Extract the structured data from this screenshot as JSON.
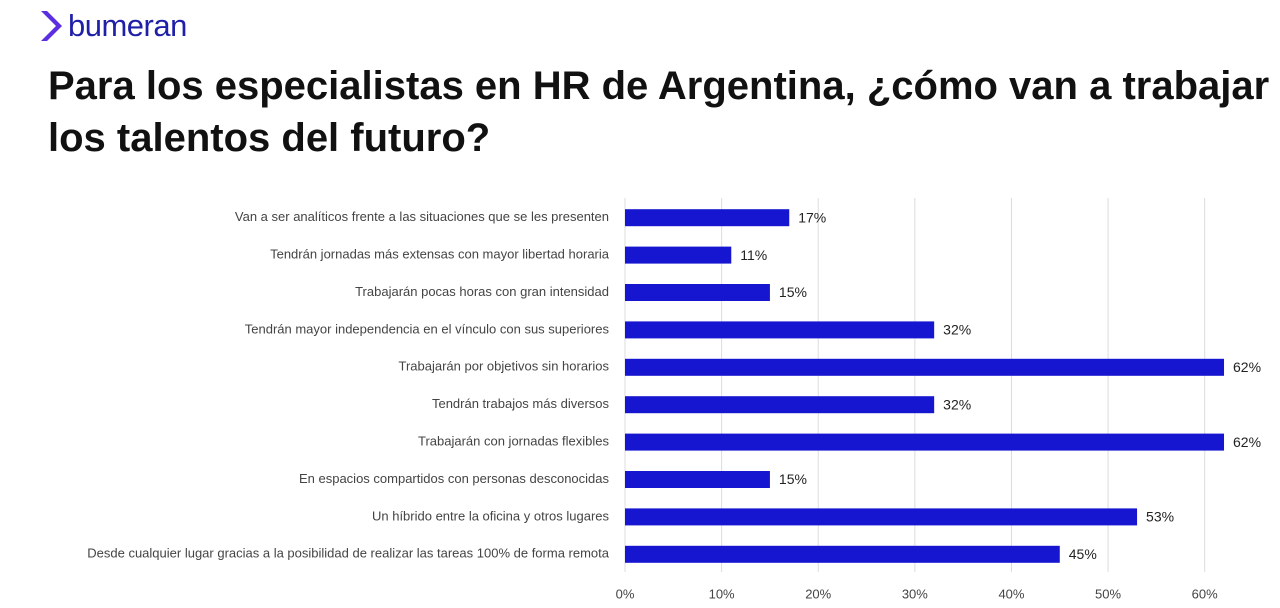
{
  "chart_data": {
    "type": "hbar",
    "logo": "bumeran",
    "title": "Para los especialistas en HR de Argentina, ¿cómo van a trabajar los talentos del futuro?",
    "categories": [
      "Van a ser analíticos frente a las situaciones que se les presenten",
      "Tendrán jornadas más extensas con mayor libertad horaria",
      "Trabajarán pocas horas con gran intensidad",
      "Tendrán mayor independencia en el vínculo con sus superiores",
      "Trabajarán por objetivos sin horarios",
      "Tendrán trabajos más diversos",
      "Trabajarán con jornadas flexibles",
      "En espacios compartidos con personas desconocidas",
      "Un híbrido entre la oficina y otros lugares",
      "Desde cualquier lugar gracias a la posibilidad de realizar las tareas 100% de forma remota"
    ],
    "values": [
      17,
      11,
      15,
      32,
      62,
      32,
      62,
      15,
      53,
      45
    ],
    "value_labels": [
      "17%",
      "11%",
      "15%",
      "32%",
      "62%",
      "32%",
      "62%",
      "15%",
      "53%",
      "45%"
    ],
    "color": "#1616d0",
    "xlim": [
      0,
      65
    ],
    "xticks": [
      {
        "value": 0,
        "label": "0%"
      },
      {
        "value": 10,
        "label": "10%"
      },
      {
        "value": 20,
        "label": "20%"
      },
      {
        "value": 30,
        "label": "30%"
      },
      {
        "value": 40,
        "label": "40%"
      },
      {
        "value": 50,
        "label": "50%"
      },
      {
        "value": 60,
        "label": "60%"
      }
    ],
    "grid": true
  }
}
